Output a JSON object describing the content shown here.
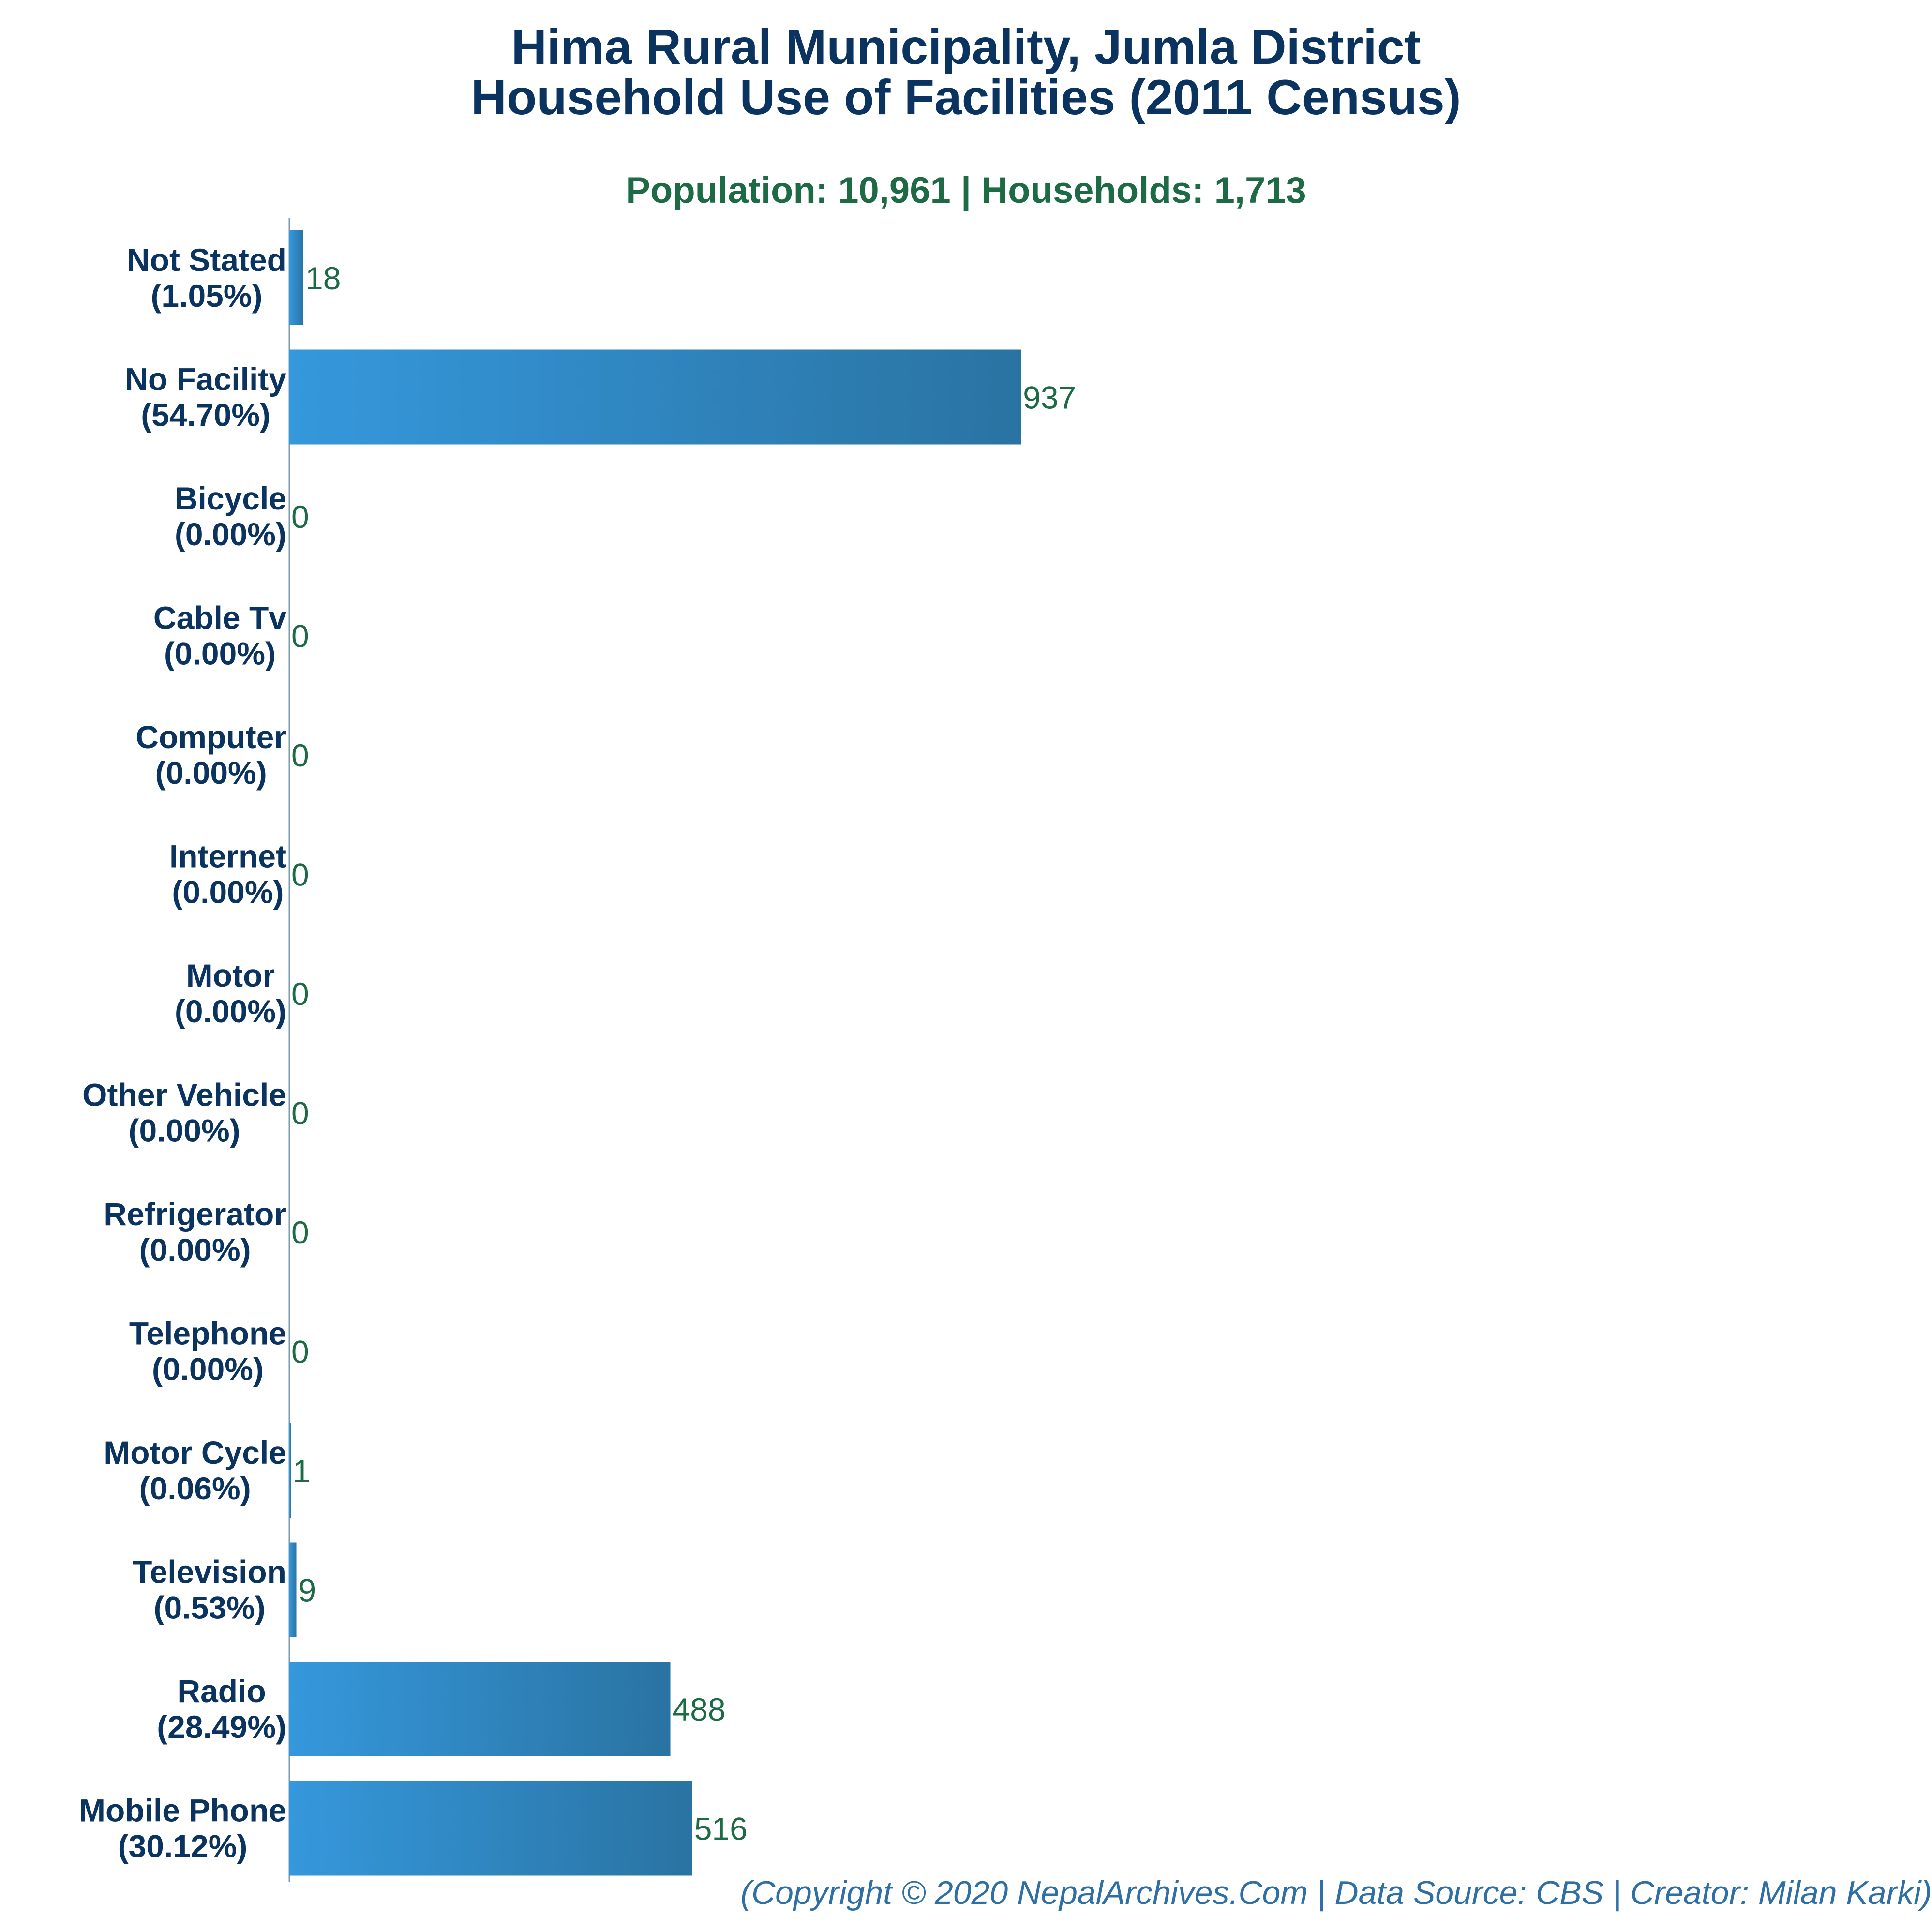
{
  "chart_data": {
    "type": "bar",
    "orientation": "horizontal",
    "title": [
      "Hima Rural Municipality, Jumla District",
      "Household Use of Facilities (2011 Census)"
    ],
    "subtitle": "Population: 10,961 | Households: 1,713",
    "categories": [
      "Not Stated",
      "No Facility",
      "Bicycle",
      "Cable Tv",
      "Computer",
      "Internet",
      "Motor",
      "Other Vehicle",
      "Refrigerator",
      "Telephone",
      "Motor Cycle",
      "Television",
      "Radio",
      "Mobile Phone"
    ],
    "percent_labels": [
      "(1.05%)",
      "(54.70%)",
      "(0.00%)",
      "(0.00%)",
      "(0.00%)",
      "(0.00%)",
      "(0.00%)",
      "(0.00%)",
      "(0.00%)",
      "(0.00%)",
      "(0.06%)",
      "(0.53%)",
      "(28.49%)",
      "(30.12%)"
    ],
    "values": [
      18,
      937,
      0,
      0,
      0,
      0,
      0,
      0,
      0,
      0,
      1,
      9,
      488,
      516
    ],
    "xlim": [
      0,
      2100
    ],
    "grid": false,
    "legend": "none",
    "colors": {
      "bar_light": "#3598dc",
      "bar_dark": "#2a73a2",
      "axis": "#7a9bb0",
      "category_text": "#0b3360",
      "value_text": "#1c6b45"
    }
  },
  "footer": {
    "copyright": "(Copyright © 2020 NepalArchives.Com | Data Source: CBS | Creator: Milan Karki)"
  }
}
